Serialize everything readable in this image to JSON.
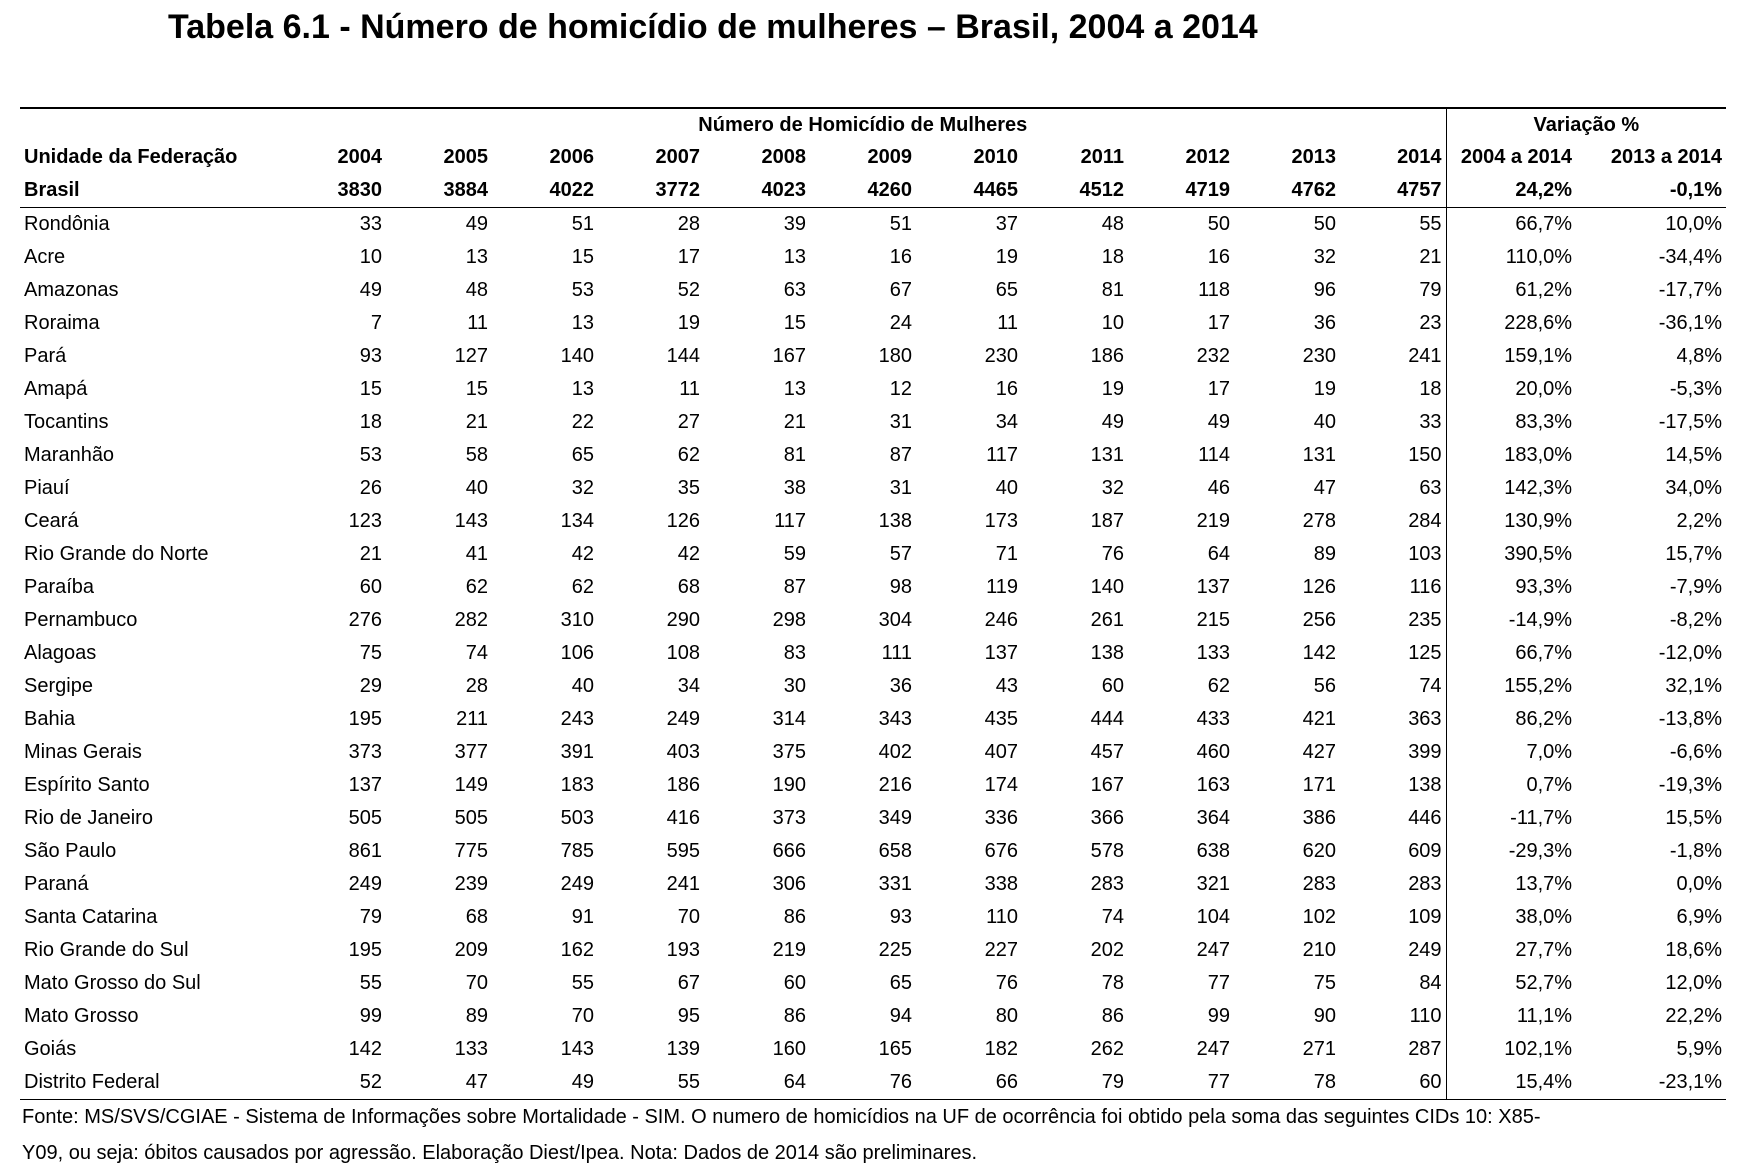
{
  "title": "Tabela 6.1 - Número de homicídio de mulheres – Brasil, 2004 a 2014",
  "header": {
    "group_counts": "Número de Homicídio de Mulheres",
    "group_variation": "Variação %",
    "col_uf": "Unidade da Federação",
    "years": [
      "2004",
      "2005",
      "2006",
      "2007",
      "2008",
      "2009",
      "2010",
      "2011",
      "2012",
      "2013",
      "2014"
    ],
    "var_cols": [
      "2004 a 2014",
      "2013 a 2014"
    ]
  },
  "brasil": {
    "name": "Brasil",
    "values": [
      "3830",
      "3884",
      "4022",
      "3772",
      "4023",
      "4260",
      "4465",
      "4512",
      "4719",
      "4762",
      "4757"
    ],
    "var": [
      "24,2%",
      "-0,1%"
    ]
  },
  "rows": [
    {
      "name": "Rondônia",
      "values": [
        "33",
        "49",
        "51",
        "28",
        "39",
        "51",
        "37",
        "48",
        "50",
        "50",
        "55"
      ],
      "var": [
        "66,7%",
        "10,0%"
      ]
    },
    {
      "name": "Acre",
      "values": [
        "10",
        "13",
        "15",
        "17",
        "13",
        "16",
        "19",
        "18",
        "16",
        "32",
        "21"
      ],
      "var": [
        "110,0%",
        "-34,4%"
      ]
    },
    {
      "name": "Amazonas",
      "values": [
        "49",
        "48",
        "53",
        "52",
        "63",
        "67",
        "65",
        "81",
        "118",
        "96",
        "79"
      ],
      "var": [
        "61,2%",
        "-17,7%"
      ]
    },
    {
      "name": "Roraima",
      "values": [
        "7",
        "11",
        "13",
        "19",
        "15",
        "24",
        "11",
        "10",
        "17",
        "36",
        "23"
      ],
      "var": [
        "228,6%",
        "-36,1%"
      ]
    },
    {
      "name": "Pará",
      "values": [
        "93",
        "127",
        "140",
        "144",
        "167",
        "180",
        "230",
        "186",
        "232",
        "230",
        "241"
      ],
      "var": [
        "159,1%",
        "4,8%"
      ]
    },
    {
      "name": "Amapá",
      "values": [
        "15",
        "15",
        "13",
        "11",
        "13",
        "12",
        "16",
        "19",
        "17",
        "19",
        "18"
      ],
      "var": [
        "20,0%",
        "-5,3%"
      ]
    },
    {
      "name": "Tocantins",
      "values": [
        "18",
        "21",
        "22",
        "27",
        "21",
        "31",
        "34",
        "49",
        "49",
        "40",
        "33"
      ],
      "var": [
        "83,3%",
        "-17,5%"
      ]
    },
    {
      "name": "Maranhão",
      "values": [
        "53",
        "58",
        "65",
        "62",
        "81",
        "87",
        "117",
        "131",
        "114",
        "131",
        "150"
      ],
      "var": [
        "183,0%",
        "14,5%"
      ]
    },
    {
      "name": "Piauí",
      "values": [
        "26",
        "40",
        "32",
        "35",
        "38",
        "31",
        "40",
        "32",
        "46",
        "47",
        "63"
      ],
      "var": [
        "142,3%",
        "34,0%"
      ]
    },
    {
      "name": "Ceará",
      "values": [
        "123",
        "143",
        "134",
        "126",
        "117",
        "138",
        "173",
        "187",
        "219",
        "278",
        "284"
      ],
      "var": [
        "130,9%",
        "2,2%"
      ]
    },
    {
      "name": "Rio Grande do Norte",
      "values": [
        "21",
        "41",
        "42",
        "42",
        "59",
        "57",
        "71",
        "76",
        "64",
        "89",
        "103"
      ],
      "var": [
        "390,5%",
        "15,7%"
      ]
    },
    {
      "name": "Paraíba",
      "values": [
        "60",
        "62",
        "62",
        "68",
        "87",
        "98",
        "119",
        "140",
        "137",
        "126",
        "116"
      ],
      "var": [
        "93,3%",
        "-7,9%"
      ]
    },
    {
      "name": "Pernambuco",
      "values": [
        "276",
        "282",
        "310",
        "290",
        "298",
        "304",
        "246",
        "261",
        "215",
        "256",
        "235"
      ],
      "var": [
        "-14,9%",
        "-8,2%"
      ]
    },
    {
      "name": "Alagoas",
      "values": [
        "75",
        "74",
        "106",
        "108",
        "83",
        "111",
        "137",
        "138",
        "133",
        "142",
        "125"
      ],
      "var": [
        "66,7%",
        "-12,0%"
      ]
    },
    {
      "name": "Sergipe",
      "values": [
        "29",
        "28",
        "40",
        "34",
        "30",
        "36",
        "43",
        "60",
        "62",
        "56",
        "74"
      ],
      "var": [
        "155,2%",
        "32,1%"
      ]
    },
    {
      "name": "Bahia",
      "values": [
        "195",
        "211",
        "243",
        "249",
        "314",
        "343",
        "435",
        "444",
        "433",
        "421",
        "363"
      ],
      "var": [
        "86,2%",
        "-13,8%"
      ]
    },
    {
      "name": "Minas Gerais",
      "values": [
        "373",
        "377",
        "391",
        "403",
        "375",
        "402",
        "407",
        "457",
        "460",
        "427",
        "399"
      ],
      "var": [
        "7,0%",
        "-6,6%"
      ]
    },
    {
      "name": "Espírito Santo",
      "values": [
        "137",
        "149",
        "183",
        "186",
        "190",
        "216",
        "174",
        "167",
        "163",
        "171",
        "138"
      ],
      "var": [
        "0,7%",
        "-19,3%"
      ]
    },
    {
      "name": "Rio de Janeiro",
      "values": [
        "505",
        "505",
        "503",
        "416",
        "373",
        "349",
        "336",
        "366",
        "364",
        "386",
        "446"
      ],
      "var": [
        "-11,7%",
        "15,5%"
      ]
    },
    {
      "name": "São Paulo",
      "values": [
        "861",
        "775",
        "785",
        "595",
        "666",
        "658",
        "676",
        "578",
        "638",
        "620",
        "609"
      ],
      "var": [
        "-29,3%",
        "-1,8%"
      ]
    },
    {
      "name": "Paraná",
      "values": [
        "249",
        "239",
        "249",
        "241",
        "306",
        "331",
        "338",
        "283",
        "321",
        "283",
        "283"
      ],
      "var": [
        "13,7%",
        "0,0%"
      ]
    },
    {
      "name": "Santa Catarina",
      "values": [
        "79",
        "68",
        "91",
        "70",
        "86",
        "93",
        "110",
        "74",
        "104",
        "102",
        "109"
      ],
      "var": [
        "38,0%",
        "6,9%"
      ]
    },
    {
      "name": "Rio Grande do Sul",
      "values": [
        "195",
        "209",
        "162",
        "193",
        "219",
        "225",
        "227",
        "202",
        "247",
        "210",
        "249"
      ],
      "var": [
        "27,7%",
        "18,6%"
      ]
    },
    {
      "name": "Mato Grosso do Sul",
      "values": [
        "55",
        "70",
        "55",
        "67",
        "60",
        "65",
        "76",
        "78",
        "77",
        "75",
        "84"
      ],
      "var": [
        "52,7%",
        "12,0%"
      ]
    },
    {
      "name": "Mato Grosso",
      "values": [
        "99",
        "89",
        "70",
        "95",
        "86",
        "94",
        "80",
        "86",
        "99",
        "90",
        "110"
      ],
      "var": [
        "11,1%",
        "22,2%"
      ]
    },
    {
      "name": "Goiás",
      "values": [
        "142",
        "133",
        "143",
        "139",
        "160",
        "165",
        "182",
        "262",
        "247",
        "271",
        "287"
      ],
      "var": [
        "102,1%",
        "5,9%"
      ]
    },
    {
      "name": "Distrito Federal",
      "values": [
        "52",
        "47",
        "49",
        "55",
        "64",
        "76",
        "66",
        "79",
        "77",
        "78",
        "60"
      ],
      "var": [
        "15,4%",
        "-23,1%"
      ]
    }
  ],
  "footnote": {
    "line1": "Fonte: MS/SVS/CGIAE - Sistema de Informações sobre Mortalidade - SIM. O numero de homicídios na UF de ocorrência foi obtido pela soma das seguintes CIDs 10: X85-",
    "line2": "Y09, ou seja: óbitos causados por agressão. Elaboração Diest/Ipea. Nota: Dados de 2014 são preliminares."
  }
}
